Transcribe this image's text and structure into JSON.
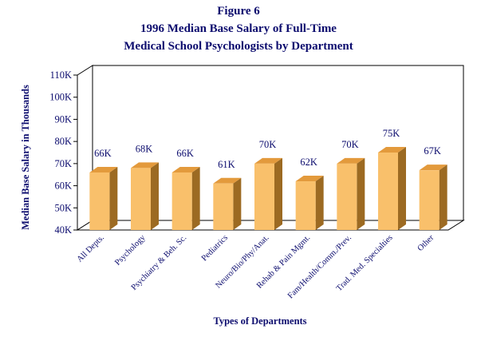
{
  "chart_data": {
    "type": "bar",
    "title": [
      "Figure 6",
      "1996 Median Base Salary of Full-Time",
      "Medical School Psychologists by Department"
    ],
    "xlabel": "Types of Departments",
    "ylabel": "Median Base Salary in Thousands",
    "categories": [
      "All Depts.",
      "Psychology",
      "Psychiatry & Beh. Sc.",
      "Pediatrics",
      "Neuro/Bio/Phy/Anat.",
      "Rehab & Pain Mgmt.",
      "Fam/Health/Comm./Prev.",
      "Trad. Med. Specialties",
      "Other"
    ],
    "values": [
      66,
      68,
      66,
      61,
      70,
      62,
      70,
      75,
      67
    ],
    "data_labels": [
      "66K",
      "68K",
      "66K",
      "61K",
      "70K",
      "62K",
      "70K",
      "75K",
      "67K"
    ],
    "ylim": [
      40,
      110
    ],
    "yticks": [
      40,
      50,
      60,
      70,
      80,
      90,
      100,
      110
    ],
    "ytick_labels": [
      "40K",
      "50K",
      "60K",
      "70K",
      "80K",
      "90K",
      "100K",
      "110K"
    ],
    "grid": false,
    "legend": "none",
    "colors": {
      "bar_front": "#f9c06b",
      "bar_side": "#9c6a22",
      "bar_top": "#e39a3c",
      "text": "#0c0c6e",
      "axis": "#000000"
    }
  }
}
